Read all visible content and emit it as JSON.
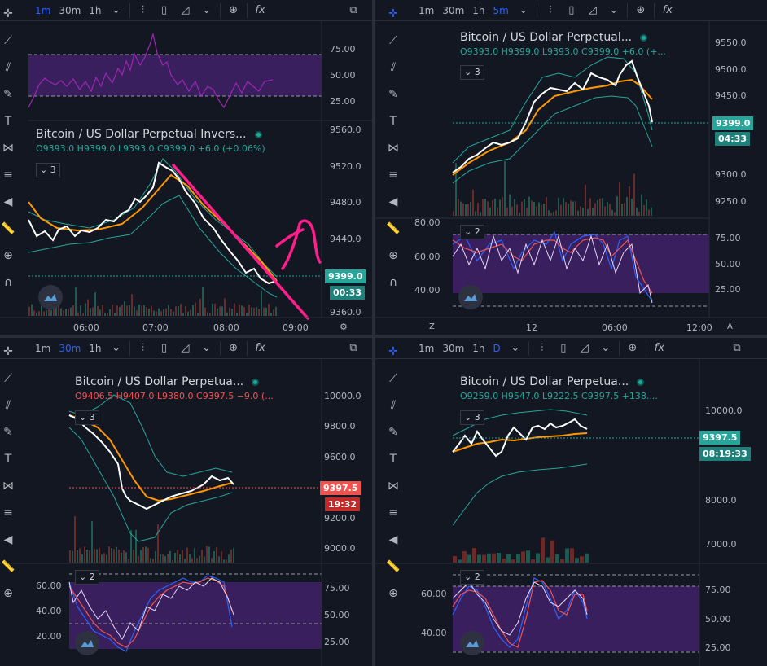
{
  "panes": [
    {
      "id": "tl",
      "toolbar": {
        "intervals": [
          "1m",
          "30m",
          "1h"
        ],
        "active": "1m"
      },
      "title": "Bitcoin / US Dollar Perpetual Invers...",
      "ohlc": {
        "o": "O9393.0",
        "h": "H9399.0",
        "l": "L9393.0",
        "c": "C9399.0",
        "change": "+6.0 (+0.06%)"
      },
      "indicator_count": "3",
      "price_ticks": [
        "9560.0",
        "9520.0",
        "9480.0",
        "9440.0",
        "9399.0",
        "9360.0"
      ],
      "osc_ticks": [
        "75.00",
        "50.00",
        "25.00"
      ],
      "last_price": "9399.0",
      "countdown": "00:33",
      "time_ticks": [
        "06:00",
        "07:00",
        "08:00",
        "09:00"
      ],
      "price_color": "#26a69a"
    },
    {
      "id": "tr",
      "toolbar": {
        "intervals": [
          "1m",
          "30m",
          "1h",
          "5m"
        ],
        "active": "5m"
      },
      "title": "Bitcoin / US Dollar Perpetual...",
      "ohlc": {
        "o": "O9393.0",
        "h": "H9399.0",
        "l": "L9393.0",
        "c": "C9399.0",
        "change": "+6.0 (+..."
      },
      "indicator_count": "3",
      "osc_indicator_count": "2",
      "price_ticks": [
        "9550.0",
        "9500.0",
        "9450.0",
        "9399.0",
        "9300.0",
        "9250.0"
      ],
      "osc_ticks_right": [
        "75.00",
        "50.00",
        "25.00"
      ],
      "osc_ticks_left": [
        "80.00",
        "60.00",
        "40.00"
      ],
      "last_price": "9399.0",
      "countdown": "04:33",
      "time_ticks": [
        "12",
        "06:00",
        "12:00"
      ],
      "axis_buttons": [
        "Z",
        "A"
      ]
    },
    {
      "id": "bl",
      "toolbar": {
        "intervals": [
          "1m",
          "30m",
          "1h"
        ],
        "active": "30m"
      },
      "title": "Bitcoin / US Dollar Perpetua...",
      "ohlc": {
        "o": "O9406.5",
        "h": "H9407.0",
        "l": "L9380.0",
        "c": "C9397.5",
        "change": "−9.0 (..."
      },
      "indicator_count": "3",
      "osc_indicator_count": "2",
      "price_ticks": [
        "10000.0",
        "9800.0",
        "9600.0",
        "9397.5",
        "9200.0",
        "9000.0"
      ],
      "osc_ticks_right": [
        "75.00",
        "50.00",
        "25.00"
      ],
      "osc_ticks_left": [
        "60.00",
        "40.00",
        "20.00"
      ],
      "last_price": "9397.5",
      "countdown": "19:32"
    },
    {
      "id": "br",
      "toolbar": {
        "intervals": [
          "1m",
          "30m",
          "1h",
          "D"
        ],
        "active": "D"
      },
      "title": "Bitcoin / US Dollar Perpetua...",
      "ohlc": {
        "o": "O9259.0",
        "h": "H9547.0",
        "l": "L9222.5",
        "c": "C9397.5",
        "change": "+138...."
      },
      "indicator_count": "3",
      "osc_indicator_count": "2",
      "price_ticks": [
        "10000.0",
        "9397.5",
        "8000.0",
        "7000.0"
      ],
      "osc_ticks_right": [
        "75.00",
        "50.00",
        "25.00"
      ],
      "osc_ticks_left": [
        "60.00",
        "40.00"
      ],
      "last_price": "9397.5",
      "countdown": "08:19:33"
    }
  ],
  "icons": {
    "toolbar": [
      "bar-style-icon",
      "candles-icon",
      "area-icon",
      "chevron-down-icon",
      "indicators-plus-icon",
      "fx-icon",
      "maximize-icon"
    ],
    "drawing": [
      "crosshair-icon",
      "trendline-icon",
      "pitchfork-icon",
      "brush-icon",
      "text-icon",
      "pattern-icon",
      "fib-icon",
      "back-arrow-icon",
      "ruler-icon",
      "zoom-icon",
      "magnet-icon"
    ]
  },
  "colors": {
    "up": "#26a69a",
    "down": "#ef5350",
    "accent": "#2962ff",
    "osc_band": "#4a2773",
    "annotation": "#ff1e8c"
  }
}
